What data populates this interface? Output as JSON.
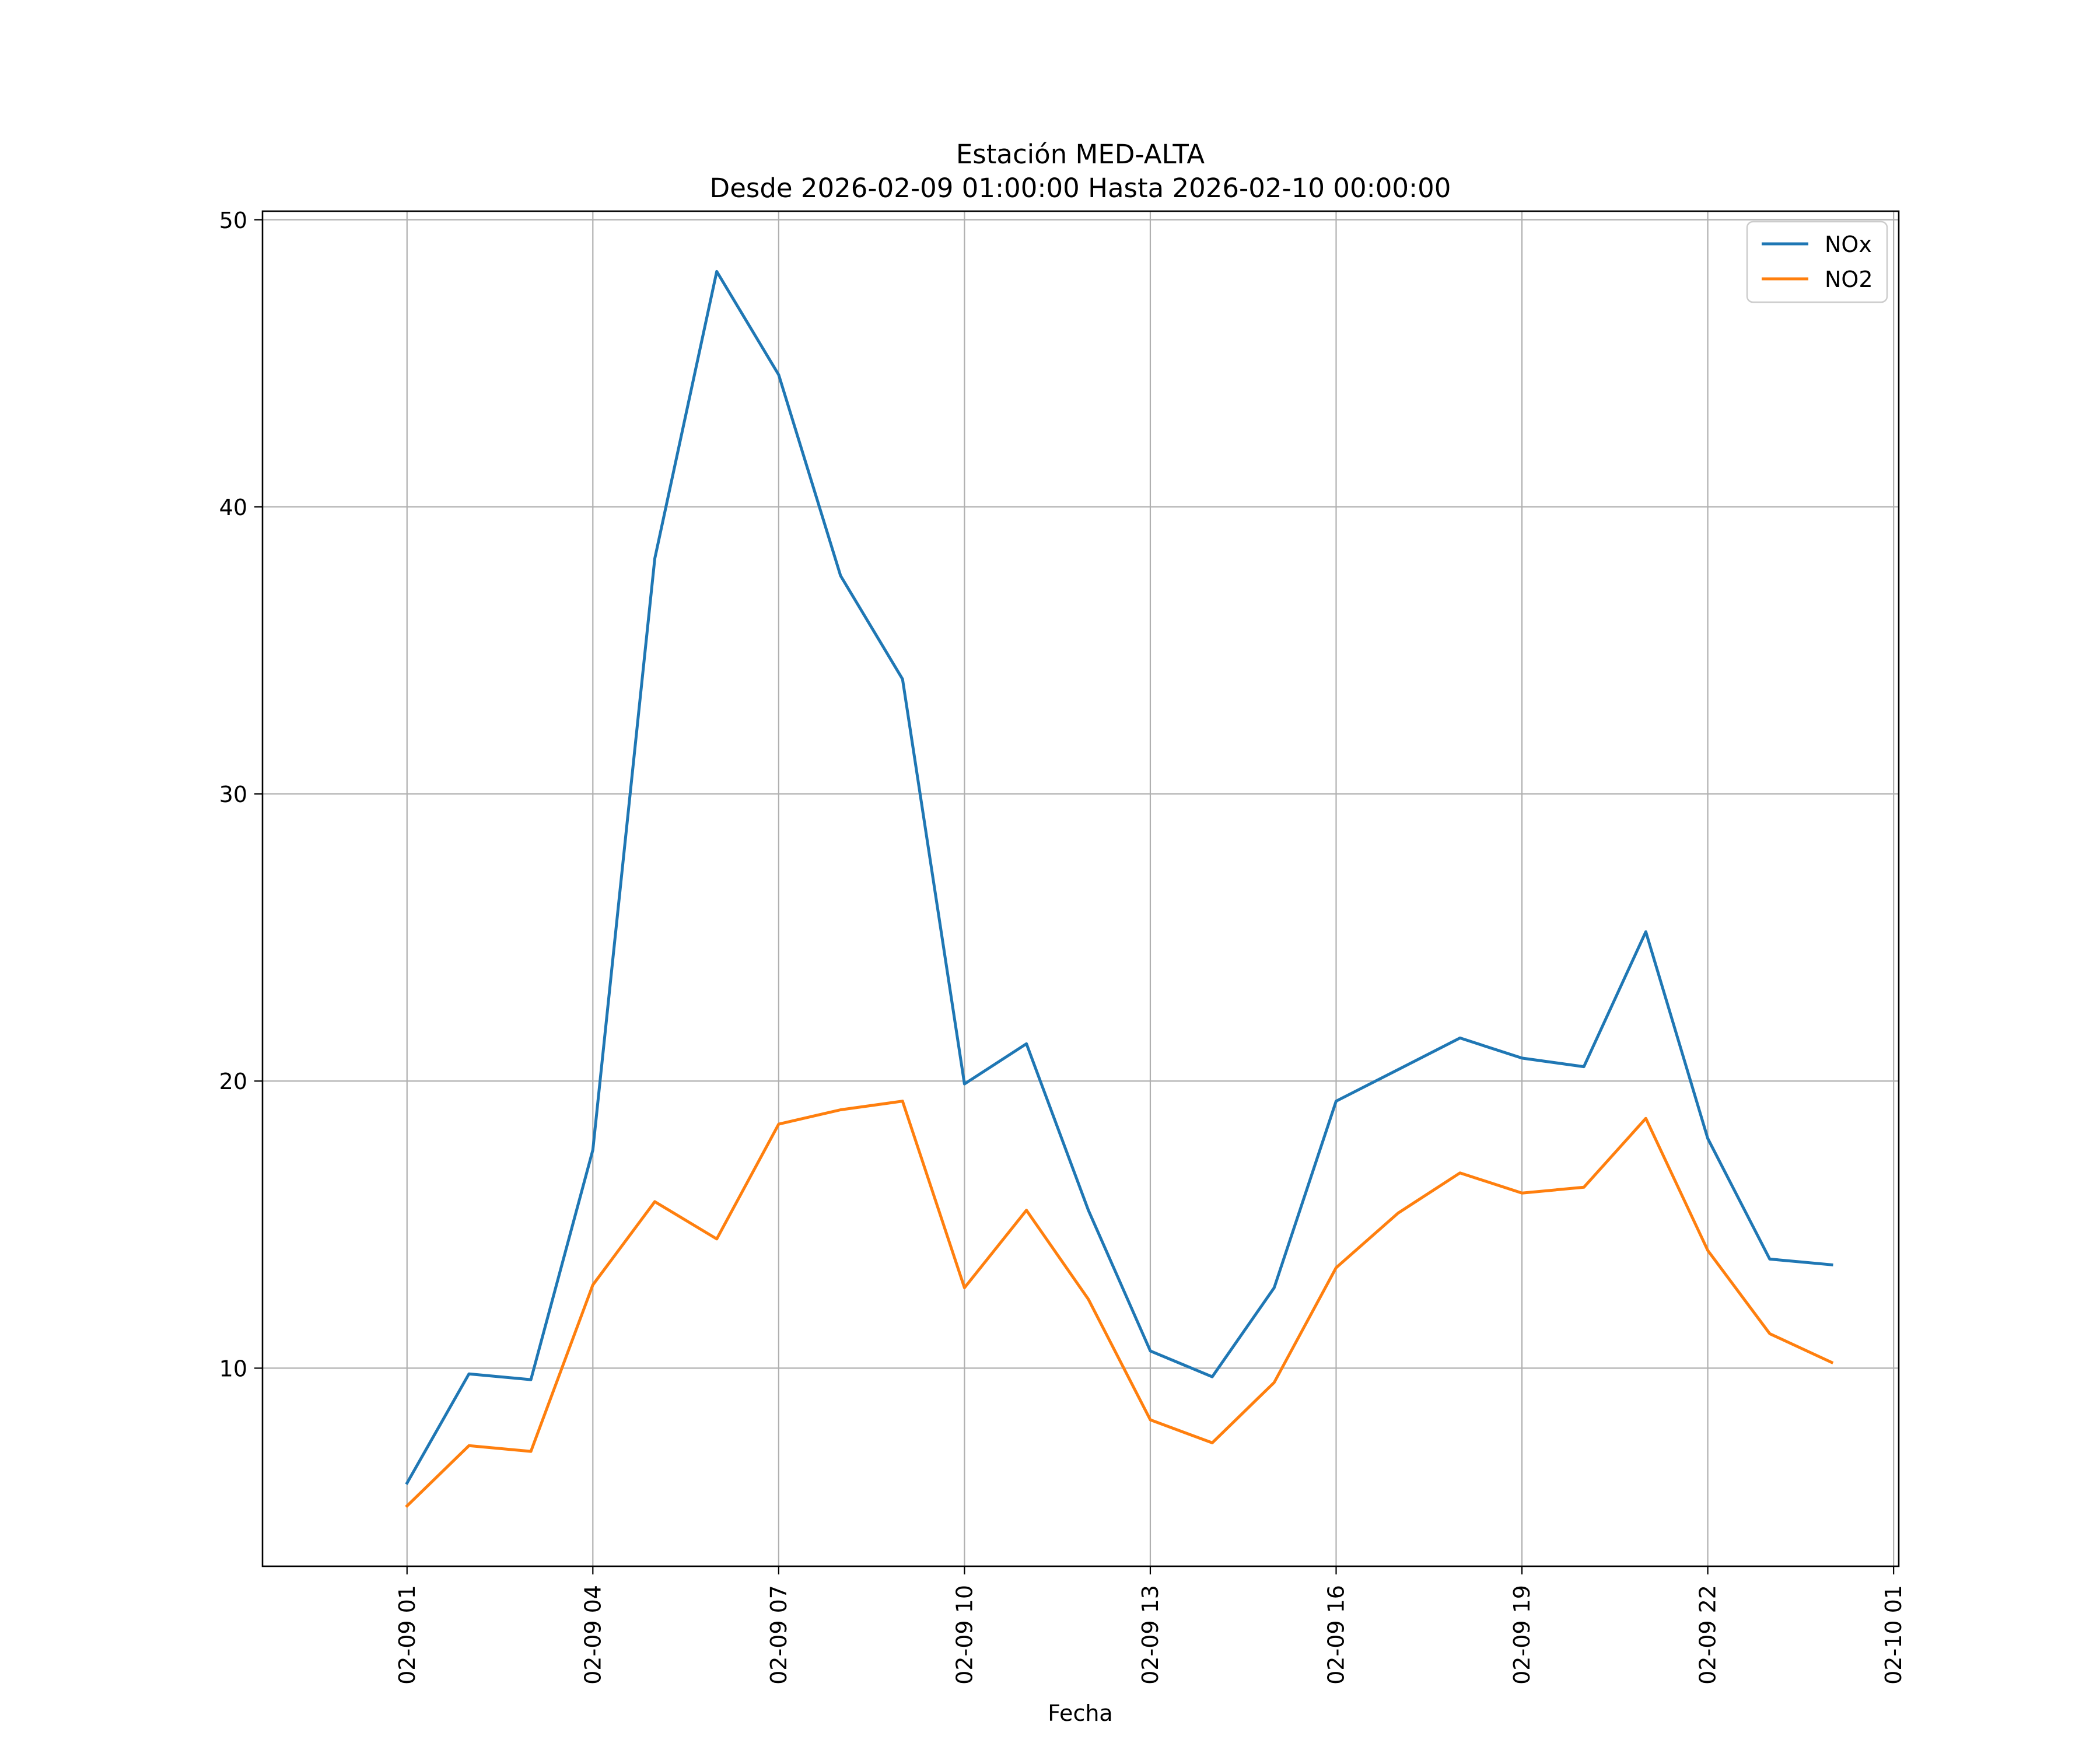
{
  "chart_data": {
    "type": "line",
    "title": "Estación MED-ALTA",
    "subtitle": "Desde 2026-02-09 01:00:00 Hasta 2026-02-10 00:00:00",
    "xlabel": "Fecha",
    "ylabel": "",
    "x": [
      "2026-02-09 01:00",
      "2026-02-09 02:00",
      "2026-02-09 03:00",
      "2026-02-09 04:00",
      "2026-02-09 05:00",
      "2026-02-09 06:00",
      "2026-02-09 07:00",
      "2026-02-09 08:00",
      "2026-02-09 09:00",
      "2026-02-09 10:00",
      "2026-02-09 11:00",
      "2026-02-09 12:00",
      "2026-02-09 13:00",
      "2026-02-09 14:00",
      "2026-02-09 15:00",
      "2026-02-09 16:00",
      "2026-02-09 17:00",
      "2026-02-09 18:00",
      "2026-02-09 19:00",
      "2026-02-09 20:00",
      "2026-02-09 21:00",
      "2026-02-09 22:00",
      "2026-02-09 23:00",
      "2026-02-10 00:00"
    ],
    "series": [
      {
        "name": "NOx",
        "color": "#1f77b4",
        "values": [
          6.0,
          9.8,
          9.6,
          17.6,
          38.2,
          48.2,
          44.6,
          37.6,
          34.0,
          19.9,
          21.3,
          15.5,
          10.6,
          9.7,
          12.8,
          19.3,
          20.4,
          21.5,
          20.8,
          20.5,
          25.2,
          18.0,
          13.8,
          13.6
        ]
      },
      {
        "name": "NO2",
        "color": "#ff7f0e",
        "values": [
          5.2,
          7.3,
          7.1,
          12.9,
          15.8,
          14.5,
          18.5,
          19.0,
          19.3,
          12.8,
          15.5,
          12.4,
          8.2,
          7.4,
          9.5,
          13.5,
          15.4,
          16.8,
          16.1,
          16.3,
          18.7,
          14.1,
          11.2,
          10.2
        ]
      }
    ],
    "xticks": [
      {
        "x": "2026-02-09 01:00",
        "label": "02-09 01"
      },
      {
        "x": "2026-02-09 04:00",
        "label": "02-09 04"
      },
      {
        "x": "2026-02-09 07:00",
        "label": "02-09 07"
      },
      {
        "x": "2026-02-09 10:00",
        "label": "02-09 10"
      },
      {
        "x": "2026-02-09 13:00",
        "label": "02-09 13"
      },
      {
        "x": "2026-02-09 16:00",
        "label": "02-09 16"
      },
      {
        "x": "2026-02-09 19:00",
        "label": "02-09 19"
      },
      {
        "x": "2026-02-09 22:00",
        "label": "02-09 22"
      },
      {
        "x": "2026-02-10 01:00",
        "label": "02-10 01"
      }
    ],
    "yticks": [
      10,
      20,
      30,
      40,
      50
    ],
    "xlim": [
      "2026-02-08 22:40",
      "2026-02-10 01:05"
    ],
    "ylim": [
      3.1,
      50.3
    ],
    "grid": true,
    "legend_position": "top-right"
  }
}
